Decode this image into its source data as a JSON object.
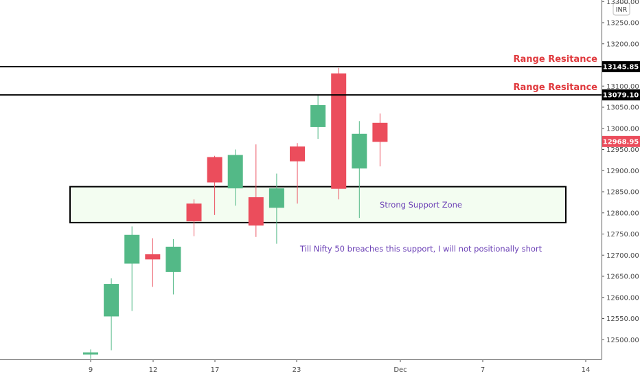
{
  "chart_data": {
    "type": "candlestick",
    "currency": "INR",
    "x_ticks": [
      "9",
      "12",
      "17",
      "23",
      "Dec",
      "7",
      "14"
    ],
    "y_ticks": [
      "12500.00",
      "12550.00",
      "12600.00",
      "12650.00",
      "12700.00",
      "12750.00",
      "12800.00",
      "12850.00",
      "12900.00",
      "12950.00",
      "13000.00",
      "13050.00",
      "13100.00",
      "13150.00",
      "13200.00",
      "13250.00",
      "13300.00"
    ],
    "y_range": [
      12455,
      13315
    ],
    "candles": [
      {
        "o": 12465,
        "h": 12477,
        "l": 12455,
        "c": 12470
      },
      {
        "o": 12555,
        "h": 12645,
        "l": 12475,
        "c": 12632
      },
      {
        "o": 12680,
        "h": 12768,
        "l": 12568,
        "c": 12748
      },
      {
        "o": 12702,
        "h": 12740,
        "l": 12625,
        "c": 12690
      },
      {
        "o": 12660,
        "h": 12738,
        "l": 12607,
        "c": 12720
      },
      {
        "o": 12822,
        "h": 12832,
        "l": 12745,
        "c": 12780
      },
      {
        "o": 12932,
        "h": 12935,
        "l": 12795,
        "c": 12872
      },
      {
        "o": 12858,
        "h": 12950,
        "l": 12817,
        "c": 12937
      },
      {
        "o": 12837,
        "h": 12962,
        "l": 12743,
        "c": 12770
      },
      {
        "o": 12812,
        "h": 12893,
        "l": 12727,
        "c": 12858
      },
      {
        "o": 12957,
        "h": 12965,
        "l": 12822,
        "c": 12922
      },
      {
        "o": 13003,
        "h": 13078,
        "l": 12975,
        "c": 13055
      },
      {
        "o": 13130,
        "h": 13143,
        "l": 12832,
        "c": 12857
      },
      {
        "o": 12905,
        "h": 13017,
        "l": 12788,
        "c": 12987
      },
      {
        "o": 13013,
        "h": 13035,
        "l": 12910,
        "c": 12968
      }
    ],
    "price_labels": [
      {
        "value": 13145.85,
        "text": "13145.85",
        "style": "black"
      },
      {
        "value": 13079.1,
        "text": "13079.10",
        "style": "black"
      },
      {
        "value": 12968.95,
        "text": "12968.95",
        "style": "red"
      }
    ],
    "horizontal_lines": [
      {
        "value": 13145.85,
        "label": "Range Resitance"
      },
      {
        "value": 13079.1,
        "label": "Range Resitance"
      }
    ],
    "support_zone": {
      "top": 12862,
      "bottom": 12777,
      "label": "Strong Support Zone"
    },
    "note": "Till Nifty 50 breaches this support, I will not positionally short",
    "colors": {
      "up": "#53b987",
      "down": "#eb4d5c",
      "line": "#000000",
      "zone_fill": "#f3fdf1",
      "resistance_text": "#e03a3e",
      "note_text": "#6a3fb5",
      "last_price": "#eb4d5c"
    }
  }
}
